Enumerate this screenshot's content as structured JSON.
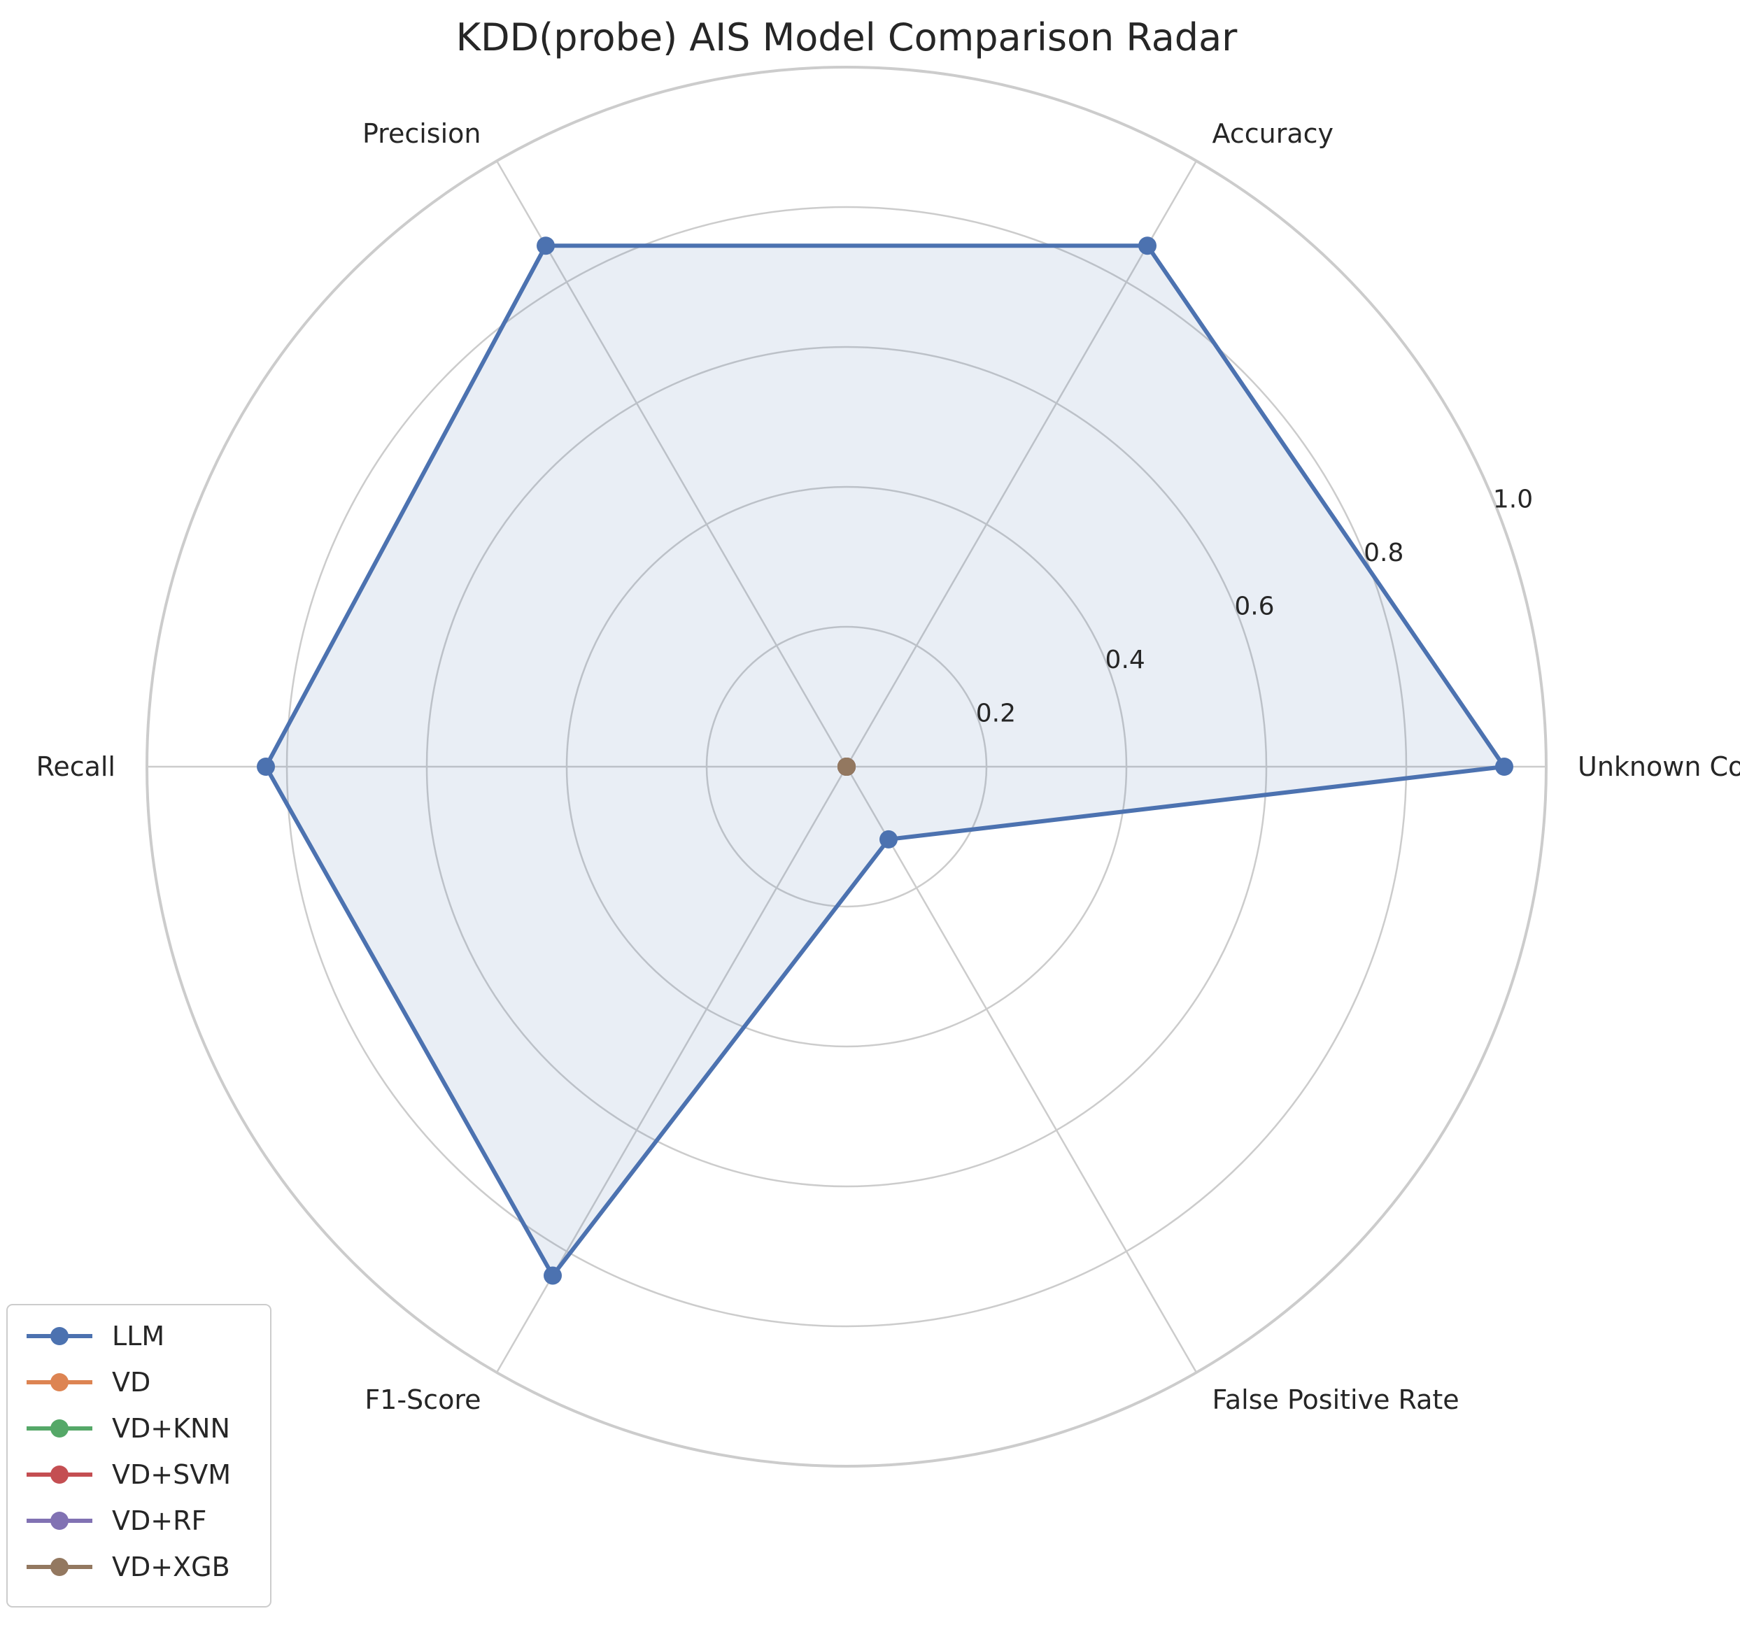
{
  "chart_data": {
    "type": "radar",
    "title": "KDD(probe) AIS Model Comparison Radar",
    "axes": [
      "Unknown Coverage",
      "Accuracy",
      "Precision",
      "Recall",
      "F1-Score",
      "False Positive Rate"
    ],
    "rlim": [
      0,
      1.0
    ],
    "rticks": [
      0.2,
      0.4,
      0.6,
      0.8,
      1.0
    ],
    "rtick_labels": [
      "0.2",
      "0.4",
      "0.6",
      "0.8",
      "1.0"
    ],
    "grid": true,
    "legend_position": "bottom-left",
    "series": [
      {
        "name": "LLM",
        "color": "#4c72b0",
        "values": [
          0.94,
          0.86,
          0.86,
          0.83,
          0.84,
          0.12
        ],
        "fill": true
      },
      {
        "name": "VD",
        "color": "#dd8452",
        "values": [
          0,
          0,
          0,
          0,
          0,
          0
        ],
        "fill": false
      },
      {
        "name": "VD+KNN",
        "color": "#55a868",
        "values": [
          0,
          0,
          0,
          0,
          0,
          0
        ],
        "fill": false
      },
      {
        "name": "VD+SVM",
        "color": "#c44e52",
        "values": [
          0,
          0,
          0,
          0,
          0,
          0
        ],
        "fill": false
      },
      {
        "name": "VD+RF",
        "color": "#8172b3",
        "values": [
          0,
          0,
          0,
          0,
          0,
          0
        ],
        "fill": false
      },
      {
        "name": "VD+XGB",
        "color": "#937860",
        "values": [
          0,
          0,
          0,
          0,
          0,
          0
        ],
        "fill": false
      }
    ]
  }
}
